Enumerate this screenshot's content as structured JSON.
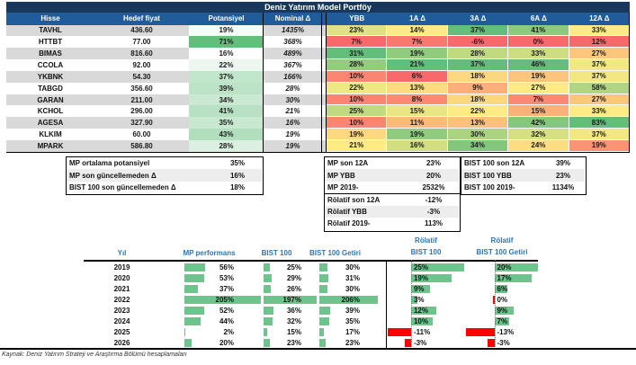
{
  "title": "Deniz Yatırım Model Portföy",
  "colors": {
    "title_bg": "#17375D",
    "header_bg": "#1F5C99",
    "band_gray": "#D9D9D9",
    "heat_low": "#F8696B",
    "heat_mid": "#FFEB84",
    "heat_high": "#63BE7B",
    "pot_low": "#FDFEFD",
    "pot_high": "#63BE7B",
    "bar_green": "#6EC48C",
    "bar_red": "#FF0000",
    "chart_header_blue": "#2E75B6"
  },
  "main_table": {
    "headers": [
      "Hisse",
      "Hedef fiyat",
      "Potansiyel",
      "Nominal Δ",
      "YBB",
      "1A Δ",
      "3A Δ",
      "6A Δ",
      "12A Δ"
    ],
    "rows": [
      {
        "hisse": "TAVHL",
        "hedef": "436.60",
        "pot": 19,
        "nominal": "1435%",
        "heat": [
          23,
          14,
          37,
          41,
          33
        ]
      },
      {
        "hisse": "HTTBT",
        "hedef": "77.00",
        "pot": 71,
        "nominal": "368%",
        "heat": [
          7,
          7,
          -6,
          0,
          12
        ]
      },
      {
        "hisse": "BIMAS",
        "hedef": "816.60",
        "pot": 16,
        "nominal": "489%",
        "heat": [
          31,
          19,
          28,
          33,
          27
        ]
      },
      {
        "hisse": "CCOLA",
        "hedef": "92.00",
        "pot": 22,
        "nominal": "367%",
        "heat": [
          28,
          21,
          37,
          46,
          37
        ]
      },
      {
        "hisse": "YKBNK",
        "hedef": "54.30",
        "pot": 37,
        "nominal": "166%",
        "heat": [
          10,
          6,
          18,
          19,
          37
        ]
      },
      {
        "hisse": "TABGD",
        "hedef": "356.60",
        "pot": 39,
        "nominal": "28%",
        "heat": [
          22,
          13,
          9,
          27,
          58
        ]
      },
      {
        "hisse": "GARAN",
        "hedef": "211.00",
        "pot": 34,
        "nominal": "30%",
        "heat": [
          10,
          8,
          18,
          7,
          27
        ]
      },
      {
        "hisse": "KCHOL",
        "hedef": "296.00",
        "pot": 41,
        "nominal": "21%",
        "heat": [
          25,
          15,
          22,
          15,
          33
        ]
      },
      {
        "hisse": "AGESA",
        "hedef": "327.90",
        "pot": 35,
        "nominal": "16%",
        "heat": [
          10,
          11,
          13,
          42,
          83
        ]
      },
      {
        "hisse": "KLKIM",
        "hedef": "60.00",
        "pot": 43,
        "nominal": "19%",
        "heat": [
          19,
          19,
          30,
          32,
          37
        ]
      },
      {
        "hisse": "MPARK",
        "hedef": "586.80",
        "pot": 28,
        "nominal": "19%",
        "heat": [
          21,
          16,
          34,
          24,
          19
        ]
      }
    ]
  },
  "summary_left": [
    {
      "label": "MP ortalama potansiyel",
      "value": "35%"
    },
    {
      "label": "MP son güncellemeden Δ",
      "value": "16%"
    },
    {
      "label": "BIST 100 son güncellemeden Δ",
      "value": "18%"
    }
  ],
  "summary_mp": [
    {
      "label": "MP son 12A",
      "value": "23%"
    },
    {
      "label": "MP YBB",
      "value": "20%"
    },
    {
      "label": "MP 2019-",
      "value": "2532%"
    }
  ],
  "summary_bist": [
    {
      "label": "BIST 100 son 12A",
      "value": "39%"
    },
    {
      "label": "BIST 100 YBB",
      "value": "23%"
    },
    {
      "label": "BIST 100 2019-",
      "value": "1134%"
    }
  ],
  "summary_rolatif": [
    {
      "label": "Rölatif son 12A",
      "value": "-12%"
    },
    {
      "label": "Rölatif YBB",
      "value": "-3%"
    },
    {
      "label": "Rölatif 2019-",
      "value": "113%"
    }
  ],
  "chart_data": {
    "type": "bar",
    "orientation": "horizontal",
    "title": "",
    "category_label": "Yıl",
    "categories": [
      "2019",
      "2020",
      "2021",
      "2022",
      "2023",
      "2024",
      "2025",
      "2026"
    ],
    "value_format": "percent",
    "series": [
      {
        "name": "MP performans",
        "header_lines": [
          "MP performans"
        ],
        "values": [
          56,
          53,
          37,
          205,
          52,
          44,
          2,
          20
        ]
      },
      {
        "name": "BIST 100",
        "header_lines": [
          "BIST 100"
        ],
        "values": [
          25,
          29,
          26,
          197,
          36,
          32,
          15,
          23
        ]
      },
      {
        "name": "BIST 100 Getiri",
        "header_lines": [
          "BIST 100 Getiri"
        ],
        "values": [
          30,
          31,
          30,
          206,
          39,
          35,
          17,
          23
        ]
      },
      {
        "name": "Rölatif BIST 100",
        "header_lines": [
          "Rölatif",
          "BIST 100"
        ],
        "values": [
          25,
          19,
          9,
          3,
          12,
          10,
          -11,
          -3
        ]
      },
      {
        "name": "Rölatif BIST 100 Getiri",
        "header_lines": [
          "Rölatif",
          "BIST 100 Getiri"
        ],
        "values": [
          20,
          17,
          6,
          0,
          9,
          7,
          -13,
          -3
        ]
      }
    ]
  },
  "footer": "Kaynak: Deniz Yatırım Strateji ve Araştırma Bölümü hesaplamaları"
}
